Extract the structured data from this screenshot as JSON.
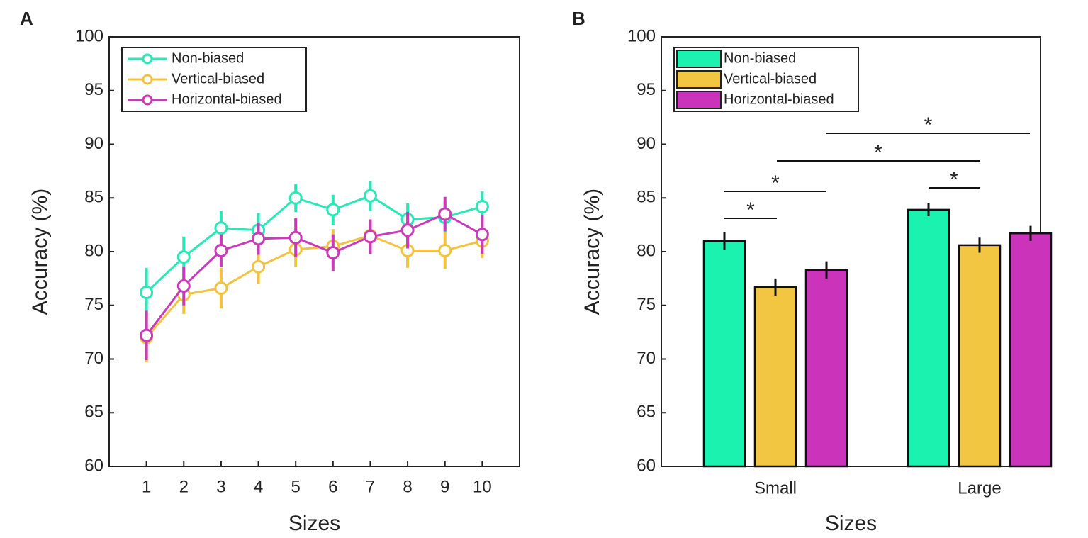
{
  "chart_data": [
    {
      "type": "line",
      "panel_label": "A",
      "xlabel": "Sizes",
      "ylabel": "Accuracy (%)",
      "x": [
        1,
        2,
        3,
        4,
        5,
        6,
        7,
        8,
        9,
        10
      ],
      "xlim": [
        0,
        11
      ],
      "xticks": [
        1,
        2,
        3,
        4,
        5,
        6,
        7,
        8,
        9,
        10
      ],
      "ylim": [
        60,
        100
      ],
      "yticks": [
        60,
        65,
        70,
        75,
        80,
        85,
        90,
        95,
        100
      ],
      "legend": "top-left",
      "series": [
        {
          "name": "Non-biased",
          "color": "#2ae7b7",
          "values": [
            76.2,
            79.5,
            82.2,
            82.0,
            85.0,
            83.9,
            85.2,
            83.0,
            83.2,
            84.2
          ],
          "errors": [
            2.3,
            1.9,
            1.6,
            1.6,
            1.3,
            1.4,
            1.4,
            1.5,
            1.5,
            1.4
          ]
        },
        {
          "name": "Vertical-biased",
          "color": "#f2c341",
          "values": [
            72.0,
            76.0,
            76.6,
            78.6,
            80.2,
            80.5,
            81.5,
            80.1,
            80.1,
            81.0
          ],
          "errors": [
            2.3,
            1.8,
            1.9,
            1.6,
            1.6,
            1.6,
            1.3,
            1.6,
            1.7,
            1.6
          ]
        },
        {
          "name": "Horizontal-biased",
          "color": "#c93bb8",
          "values": [
            72.2,
            76.8,
            80.1,
            81.2,
            81.3,
            79.9,
            81.4,
            82.0,
            83.5,
            81.6
          ],
          "errors": [
            2.3,
            1.8,
            1.5,
            1.5,
            1.8,
            1.7,
            1.6,
            1.7,
            1.6,
            1.8
          ]
        }
      ]
    },
    {
      "type": "bar",
      "panel_label": "B",
      "xlabel": "Sizes",
      "ylabel": "Accuracy (%)",
      "categories": [
        "Small",
        "Large"
      ],
      "ylim": [
        60,
        100
      ],
      "yticks": [
        60,
        65,
        70,
        75,
        80,
        85,
        90,
        95,
        100
      ],
      "legend": "top-left",
      "series": [
        {
          "name": "Non-biased",
          "color": "#1bf2b0",
          "values": [
            81.0,
            83.9
          ],
          "errors": [
            0.8,
            0.6
          ]
        },
        {
          "name": "Vertical-biased",
          "color": "#f2c640",
          "values": [
            76.7,
            80.6
          ],
          "errors": [
            0.8,
            0.7
          ]
        },
        {
          "name": "Horizontal-biased",
          "color": "#cc33bb",
          "values": [
            78.3,
            81.7
          ],
          "errors": [
            0.8,
            0.7
          ]
        }
      ],
      "annotations": [
        "*",
        "*",
        "*",
        "*",
        "*"
      ]
    }
  ]
}
